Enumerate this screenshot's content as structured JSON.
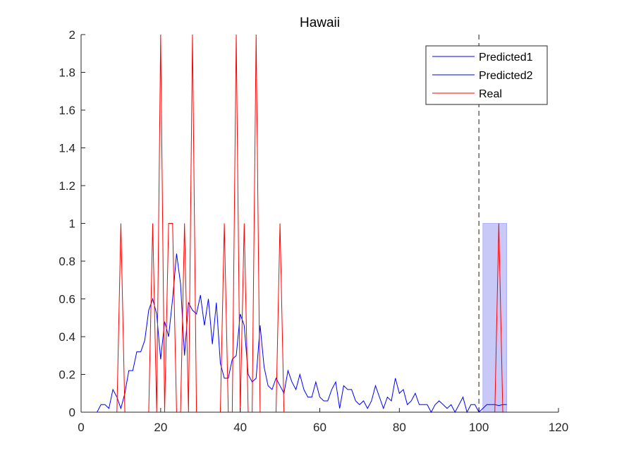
{
  "chart_data": {
    "type": "line",
    "title": "Hawaii",
    "xlabel": "",
    "ylabel": "",
    "xlim": [
      0,
      120
    ],
    "ylim": [
      0,
      2
    ],
    "xticks": [
      0,
      20,
      40,
      60,
      80,
      100,
      120
    ],
    "yticks": [
      0,
      0.2,
      0.4,
      0.6,
      0.8,
      1,
      1.2,
      1.4,
      1.6,
      1.8,
      2
    ],
    "ytick_labels": [
      "0",
      "0.2",
      "0.4",
      "0.6",
      "0.8",
      "1",
      "1.2",
      "1.4",
      "1.6",
      "1.8",
      "2"
    ],
    "xtick_labels": [
      "0",
      "20",
      "40",
      "60",
      "80",
      "100",
      "120"
    ],
    "grid": false,
    "legend_position": "top-right",
    "vline": {
      "x": 100,
      "style": "dashed",
      "color": "#404040"
    },
    "shaded_region": {
      "x": [
        101,
        107
      ],
      "y": [
        0,
        1
      ],
      "color": "#c9c9f7"
    },
    "series": [
      {
        "name": "Predicted1",
        "color": "#0000ff",
        "x": [
          4,
          5,
          6,
          7,
          8,
          9,
          10,
          11,
          12,
          13,
          14,
          15,
          16,
          17,
          18,
          19,
          20,
          21,
          22,
          23,
          24,
          25,
          26,
          27,
          28,
          29,
          30,
          31,
          32,
          33,
          34,
          35,
          36,
          37,
          38,
          39,
          40,
          41,
          42,
          43,
          44,
          45,
          46,
          47,
          48,
          49,
          50,
          51,
          52,
          53,
          54,
          55,
          56,
          57,
          58,
          59,
          60,
          61,
          62,
          63,
          64,
          65,
          66,
          67,
          68,
          69,
          70,
          71,
          72,
          73,
          74,
          75,
          76,
          77,
          78,
          79,
          80,
          81,
          82,
          83,
          84,
          85,
          86,
          87,
          88,
          89,
          90,
          91,
          92,
          93,
          94,
          95,
          96,
          97,
          98,
          99,
          100
        ],
        "y": [
          0,
          0.04,
          0.04,
          0.02,
          0.12,
          0.08,
          0.02,
          0.1,
          0.22,
          0.22,
          0.32,
          0.32,
          0.38,
          0.54,
          0.6,
          0.52,
          0.28,
          0.48,
          0.4,
          0.6,
          0.84,
          0.68,
          0.3,
          0.58,
          0.54,
          0.52,
          0.62,
          0.46,
          0.6,
          0.36,
          0.58,
          0.26,
          0.18,
          0.18,
          0.28,
          0.3,
          0.52,
          0.46,
          0.2,
          0.16,
          0.18,
          0.46,
          0.24,
          0.14,
          0.12,
          0.18,
          0.14,
          0.1,
          0.22,
          0.16,
          0.12,
          0.2,
          0.12,
          0.08,
          0.08,
          0.16,
          0.08,
          0.06,
          0.06,
          0.12,
          0.16,
          0.02,
          0.14,
          0.12,
          0.12,
          0.06,
          0.04,
          0.06,
          0.02,
          0.06,
          0.14,
          0.08,
          0.02,
          0.08,
          0.06,
          0.18,
          0.1,
          0.12,
          0.04,
          0.06,
          0.1,
          0.04,
          0.04,
          0.04,
          0,
          0.04,
          0.06,
          0.04,
          0.02,
          0.04,
          0,
          0.04,
          0.08,
          0,
          0.04,
          0.04,
          0
        ]
      },
      {
        "name": "Predicted2",
        "color": "#0000ff",
        "x": [
          100,
          101,
          102,
          103,
          104,
          105,
          106,
          107
        ],
        "y": [
          0,
          0.02,
          0.04,
          0.04,
          0.04,
          0.035,
          0.04,
          0.04
        ]
      },
      {
        "name": "Real",
        "color": "#ff0000",
        "x": [
          9,
          10,
          11,
          17,
          18,
          19,
          20,
          21,
          22,
          23,
          24,
          25,
          26,
          27,
          28,
          29,
          35,
          36,
          37,
          38,
          39,
          40,
          41,
          42,
          43,
          44,
          45,
          49,
          50,
          51,
          104,
          105,
          106
        ],
        "y": [
          0,
          1,
          0,
          0,
          1,
          0,
          2,
          0,
          1,
          1,
          0,
          0,
          1,
          0,
          2,
          0,
          0,
          1,
          0,
          0,
          2,
          0,
          1,
          0,
          0,
          2,
          0,
          0,
          1,
          0,
          0,
          1,
          0
        ]
      }
    ]
  }
}
